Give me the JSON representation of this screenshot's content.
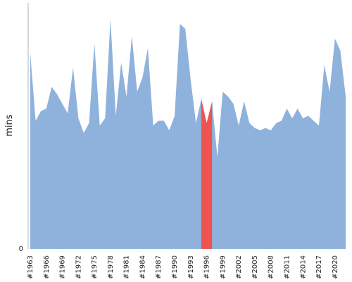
{
  "chart_data": {
    "type": "area",
    "ylabel": "mins",
    "ylim": [
      0,
      100
    ],
    "y_ticks": [
      {
        "value": 0,
        "label": "0"
      }
    ],
    "colors": {
      "area": "#8fb2dc",
      "highlight": "#ef5350",
      "axis": "#b0b0b0"
    },
    "highlight_range": [
      "1995",
      "1997"
    ],
    "x_tick_labels": [
      "#1963",
      "#1966",
      "#1969",
      "#1972",
      "#1975",
      "#1978",
      "#1981",
      "#1984",
      "#1987",
      "#1990",
      "#1993",
      "#1996",
      "#1999",
      "#2002",
      "#2005",
      "#2008",
      "#2011",
      "#2014",
      "#2017",
      "#2020"
    ],
    "x": [
      1963,
      1964,
      1965,
      1966,
      1967,
      1968,
      1969,
      1970,
      1971,
      1972,
      1973,
      1974,
      1975,
      1976,
      1977,
      1978,
      1979,
      1980,
      1981,
      1982,
      1983,
      1984,
      1985,
      1986,
      1987,
      1988,
      1989,
      1990,
      1991,
      1992,
      1993,
      1994,
      1995,
      1996,
      1997,
      1998,
      1999,
      2000,
      2001,
      2002,
      2003,
      2004,
      2005,
      2006,
      2007,
      2008,
      2009,
      2010,
      2011,
      2012,
      2013,
      2014,
      2015,
      2016,
      2017,
      2018,
      2019,
      2020,
      2021,
      2022
    ],
    "values": [
      81,
      53,
      57,
      58,
      67,
      64,
      60,
      56,
      75,
      54,
      48,
      52,
      85,
      51,
      54,
      95,
      55,
      77,
      63,
      88,
      65,
      71,
      83,
      51,
      53,
      53,
      49,
      55,
      93,
      91,
      70,
      52,
      62,
      52,
      61,
      38,
      65,
      63,
      60,
      51,
      61,
      52,
      50,
      49,
      50,
      49,
      52,
      53,
      58,
      54,
      58,
      54,
      55,
      53,
      51,
      76,
      65,
      87,
      82,
      63
    ]
  }
}
